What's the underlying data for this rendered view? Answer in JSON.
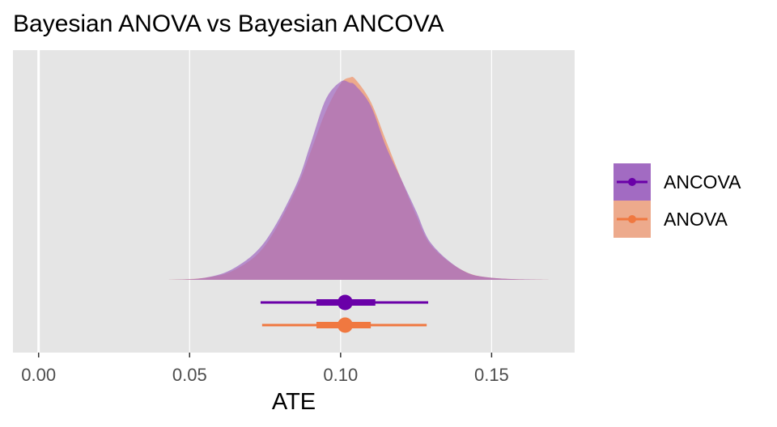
{
  "chart_data": {
    "type": "area",
    "title": "Bayesian ANOVA vs Bayesian ANCOVA",
    "xlabel": "ATE",
    "ylabel": "",
    "xlim": [
      -0.0085,
      0.1775
    ],
    "x_ticks": [
      0.0,
      0.05,
      0.1,
      0.15
    ],
    "x_tick_labels": [
      "0.00",
      "0.05",
      "0.10",
      "0.15"
    ],
    "grid": true,
    "background": "#e5e5e5",
    "reference_line_x": 0.0,
    "legend_position": "right",
    "series": [
      {
        "name": "ANOVA",
        "color": "#f07840",
        "fill": "#edaa8c",
        "density": {
          "x": [
            0.043,
            0.055,
            0.065,
            0.075,
            0.085,
            0.09,
            0.095,
            0.1,
            0.103,
            0.105,
            0.11,
            0.115,
            0.12,
            0.125,
            0.13,
            0.14,
            0.15,
            0.17
          ],
          "y": [
            0.0,
            0.01,
            0.05,
            0.17,
            0.44,
            0.63,
            0.83,
            0.97,
            1.0,
            0.99,
            0.88,
            0.69,
            0.5,
            0.32,
            0.17,
            0.05,
            0.01,
            0.0
          ]
        },
        "point_estimate": 0.1015,
        "interval_66": [
          0.092,
          0.11
        ],
        "interval_95": [
          0.074,
          0.1285
        ]
      },
      {
        "name": "ANCOVA",
        "color": "#6a00a8",
        "fill": "#a26bc2",
        "density": {
          "x": [
            0.043,
            0.055,
            0.065,
            0.075,
            0.085,
            0.09,
            0.095,
            0.1,
            0.103,
            0.105,
            0.11,
            0.115,
            0.12,
            0.125,
            0.13,
            0.14,
            0.15,
            0.17
          ],
          "y": [
            0.0,
            0.01,
            0.06,
            0.19,
            0.46,
            0.67,
            0.89,
            0.98,
            0.975,
            0.96,
            0.86,
            0.66,
            0.5,
            0.34,
            0.18,
            0.05,
            0.01,
            0.0
          ]
        },
        "point_estimate": 0.1015,
        "interval_66": [
          0.092,
          0.1115
        ],
        "interval_95": [
          0.0735,
          0.129
        ]
      }
    ],
    "overlap_fill": "#a7548f"
  }
}
